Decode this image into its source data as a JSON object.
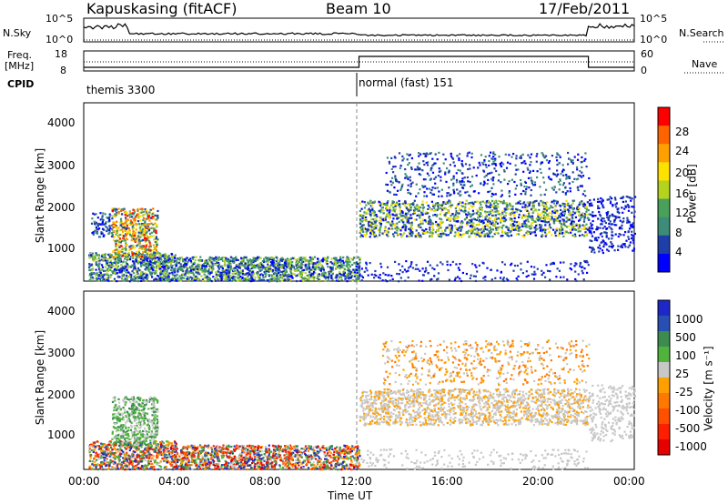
{
  "header": {
    "station": "Kapuskasing (fitACF)",
    "beam": "Beam 10",
    "date": "17/Feb/2011"
  },
  "left_labels": {
    "nsky": "N.Sky",
    "freq": "Freq.",
    "freq_unit": "[MHz]",
    "cpid": "CPID"
  },
  "right_labels": {
    "nsearch": "N.Search",
    "nave": "Nave"
  },
  "nsky_ticks": [
    "10^5",
    "10^0"
  ],
  "nsearch_ticks": [
    "10^5",
    "10^0"
  ],
  "freq_ticks": [
    "18",
    "8"
  ],
  "nave_ticks": [
    "60",
    "0"
  ],
  "cpid_modes": [
    "themis 3300",
    "normal (fast) 151"
  ],
  "colors": {
    "power": [
      "#0000ff",
      "#1f3fa8",
      "#3c8c78",
      "#48a05a",
      "#b4d21e",
      "#ffe100",
      "#ffa000",
      "#ff6400",
      "#ff0000"
    ],
    "velocity": [
      "#1e28c8",
      "#2850b4",
      "#3c8c50",
      "#50b43c",
      "#c8c8c8",
      "#ffa000",
      "#ff7800",
      "#ff5000",
      "#ff1e00",
      "#e60000"
    ]
  },
  "chart_data": [
    {
      "type": "heatmap",
      "name": "power",
      "ylabel": "Slant Range [km]",
      "xlabel": "Time UT",
      "x_ticks": [
        "00:00",
        "04:00",
        "08:00",
        "12:00",
        "16:00",
        "20:00",
        "00:00"
      ],
      "xlim": [
        0,
        24
      ],
      "ylim": [
        180,
        4600
      ],
      "y_ticks": [
        1000,
        2000,
        3000,
        4000
      ],
      "colorbar_label": "Power [dB]",
      "colorbar_ticks": [
        4,
        8,
        12,
        16,
        20,
        24,
        28
      ],
      "colorbar_range": [
        0,
        30
      ]
    },
    {
      "type": "heatmap",
      "name": "velocity",
      "ylabel": "Slant Range [km]",
      "xlabel": "Time UT",
      "x_ticks": [
        "00:00",
        "04:00",
        "08:00",
        "12:00",
        "16:00",
        "20:00",
        "00:00"
      ],
      "xlim": [
        0,
        24
      ],
      "ylim": [
        180,
        4600
      ],
      "y_ticks": [
        1000,
        2000,
        3000,
        4000
      ],
      "colorbar_label": "Velocity [m s⁻¹]",
      "colorbar_ticks": [
        "1000",
        "500",
        "100",
        "25",
        "-25",
        "-100",
        "-500",
        "-1000"
      ]
    }
  ]
}
